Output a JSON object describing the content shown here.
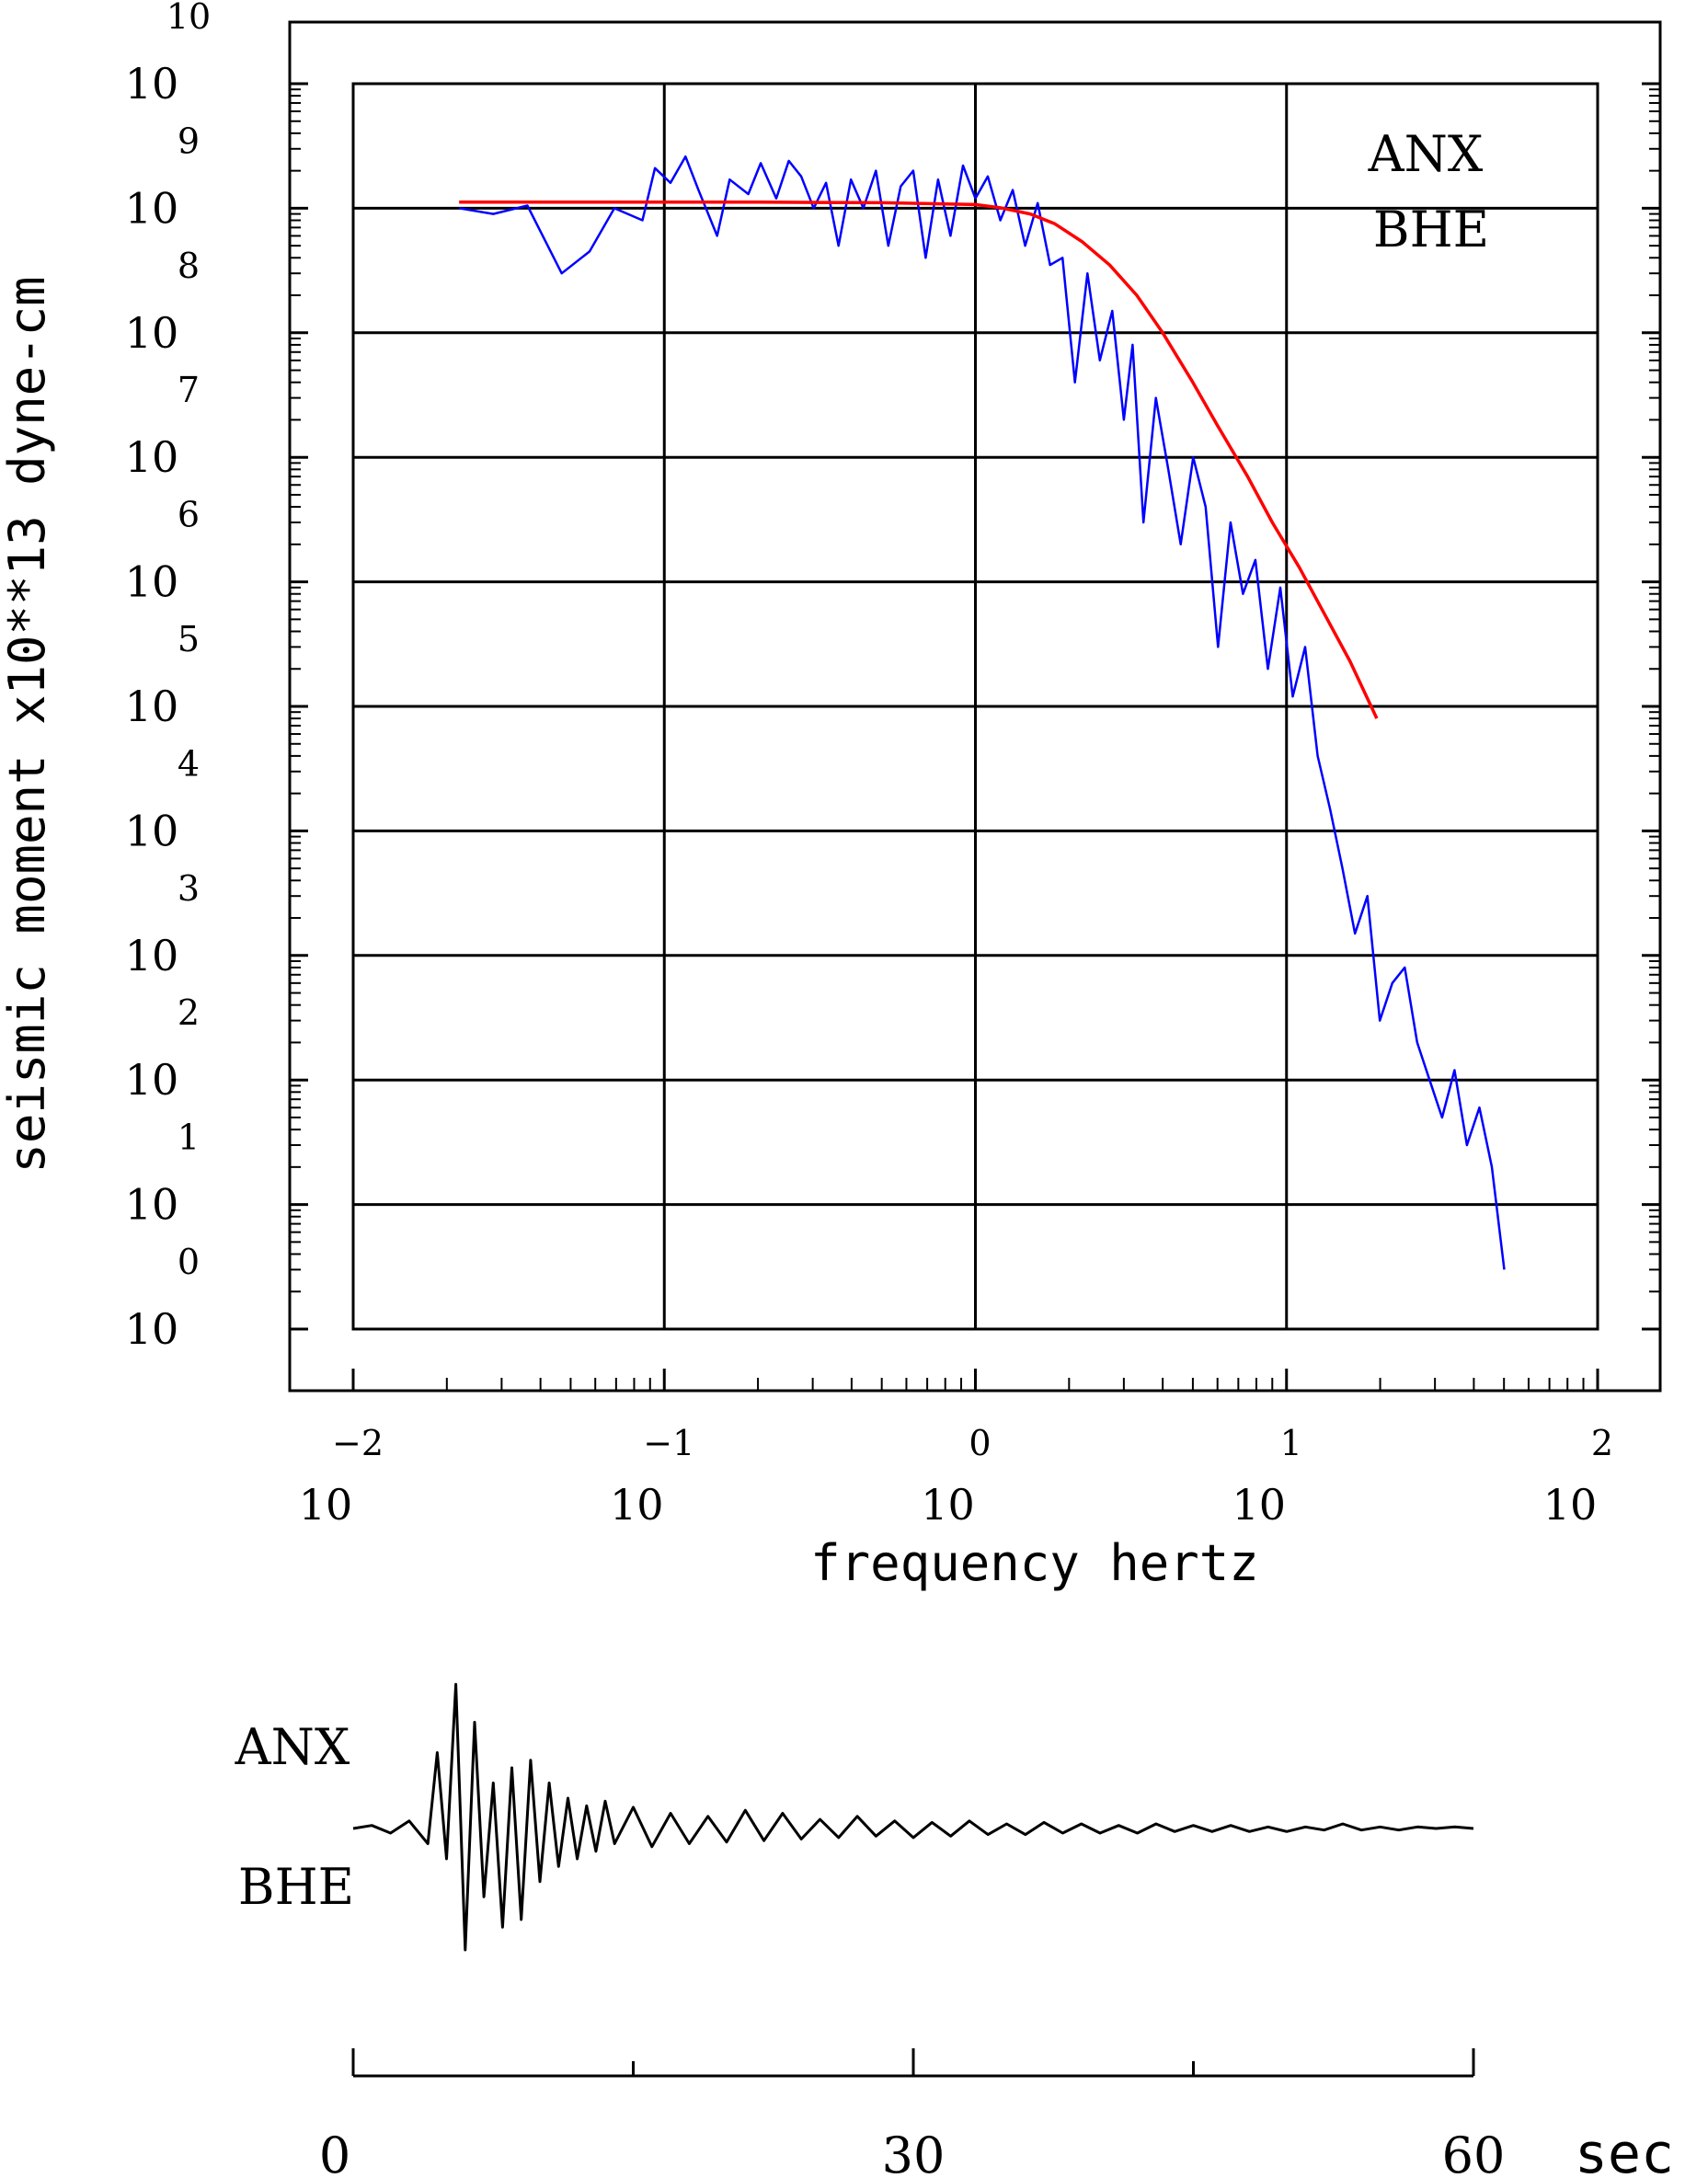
{
  "chart_data": [
    {
      "type": "line",
      "title": "",
      "xlabel": "frequency  hertz",
      "ylabel": "seismic moment x10**13 dyne-cm",
      "x_scale": "log",
      "y_scale": "log",
      "xlim": [
        0.01,
        100
      ],
      "ylim": [
        1,
        10000000000
      ],
      "x_ticks": [
        {
          "value": 0.01,
          "base": "10",
          "exp": "−2"
        },
        {
          "value": 0.1,
          "base": "10",
          "exp": "−1"
        },
        {
          "value": 1,
          "base": "10",
          "exp": "0"
        },
        {
          "value": 10,
          "base": "10",
          "exp": "1"
        },
        {
          "value": 100,
          "base": "10",
          "exp": "2"
        }
      ],
      "y_ticks": [
        {
          "value": 1,
          "base": "10",
          "exp": "0"
        },
        {
          "value": 10,
          "base": "10",
          "exp": "1"
        },
        {
          "value": 100,
          "base": "10",
          "exp": "2"
        },
        {
          "value": 1000,
          "base": "10",
          "exp": "3"
        },
        {
          "value": 10000,
          "base": "10",
          "exp": "4"
        },
        {
          "value": 100000,
          "base": "10",
          "exp": "5"
        },
        {
          "value": 1000000,
          "base": "10",
          "exp": "6"
        },
        {
          "value": 10000000,
          "base": "10",
          "exp": "7"
        },
        {
          "value": 100000000,
          "base": "10",
          "exp": "8"
        },
        {
          "value": 1000000000,
          "base": "10",
          "exp": "9"
        },
        {
          "value": 10000000000,
          "base": "10",
          "exp": "10"
        }
      ],
      "grid": true,
      "annotations": [
        "ANX",
        "BHE"
      ],
      "series": [
        {
          "color": "#0000ff",
          "x": [
            0.0219,
            0.0282,
            0.0363,
            0.0468,
            0.0575,
            0.0691,
            0.0851,
            0.0933,
            0.1047,
            0.117,
            0.1288,
            0.1479,
            0.1622,
            0.1862,
            0.2042,
            0.2291,
            0.2512,
            0.2754,
            0.3021,
            0.3311,
            0.3631,
            0.3981,
            0.4365,
            0.4786,
            0.5248,
            0.5754,
            0.631,
            0.6918,
            0.7586,
            0.8318,
            0.912,
            1.0,
            1.0965,
            1.2023,
            1.3183,
            1.4454,
            1.5849,
            1.7378,
            1.9055,
            2.0893,
            2.2909,
            2.5119,
            2.7542,
            3.0,
            3.2,
            3.4674,
            3.8019,
            4.1687,
            4.5709,
            5.0119,
            5.4954,
            6.0256,
            6.6069,
            7.2444,
            7.9433,
            8.7096,
            9.5499,
            10.4713,
            11.4815,
            12.5893,
            13.8038,
            15.1356,
            16.5959,
            18.197,
            19.9526,
            21.8776,
            23.9883,
            26.3027,
            28.8403,
            31.6228,
            34.6737,
            38.0189,
            41.6869,
            45.7088,
            50.1187
          ],
          "y": [
            1000000000,
            900000000,
            1050000000,
            300000000,
            450000000,
            1000000000,
            800000000,
            2100000000,
            1600000000,
            2600000000,
            1400000000,
            600000000,
            1700000000,
            1300000000,
            2300000000,
            1200000000,
            2400000000,
            1800000000,
            1000000000,
            1600000000,
            500000000,
            1700000000,
            1000000000,
            2000000000,
            500000000,
            1500000000,
            2000000000,
            400000000,
            1700000000,
            600000000,
            2200000000,
            1200000000,
            1800000000,
            800000000,
            1400000000,
            500000000,
            1100000000,
            350000000,
            400000000,
            40000000,
            300000000,
            60000000,
            150000000,
            20000000,
            80000000,
            3000000,
            30000000,
            8000000,
            2000000,
            10000000,
            4000000,
            300000,
            3000000,
            800000,
            1500000,
            200000,
            900000,
            120000,
            300000,
            40000,
            15000,
            5000,
            1500,
            3000,
            300,
            600,
            800,
            200,
            100,
            50,
            120,
            30,
            60,
            20,
            3
          ]
        },
        {
          "color": "#ff0000",
          "x": [
            0.0219,
            0.05,
            0.1,
            0.2,
            0.5,
            1.0,
            1.2,
            1.5,
            1.8,
            2.2,
            2.7,
            3.3,
            4.0,
            5.0,
            6.0,
            7.5,
            9.0,
            11.0,
            13.0,
            16.0,
            19.5
          ],
          "y": [
            1120000000,
            1120000000,
            1120000000,
            1118000000,
            1108000000,
            1070000000,
            1010000000,
            900000000,
            750000000,
            540000000,
            350000000,
            200000000,
            100000000,
            40000000,
            18000000,
            7000000,
            3000000,
            1300000,
            600000,
            230000,
            80000
          ]
        }
      ]
    },
    {
      "type": "line",
      "title": "",
      "xlabel": "sec",
      "ylabel": "",
      "xlim": [
        0,
        60
      ],
      "x_ticks": [
        "0",
        "30",
        "60"
      ],
      "annotations": [
        "ANX",
        "BHE"
      ],
      "series": [
        {
          "color": "#000000",
          "x": [
            0,
            1,
            2,
            3,
            4,
            4.5,
            5,
            5.5,
            6,
            6.5,
            7,
            7.5,
            8,
            8.5,
            9,
            9.5,
            10,
            10.5,
            11,
            11.5,
            12,
            12.5,
            13,
            13.5,
            14,
            15,
            16,
            17,
            18,
            19,
            20,
            21,
            22,
            23,
            24,
            25,
            26,
            27,
            28,
            29,
            30,
            31,
            32,
            33,
            34,
            35,
            36,
            37,
            38,
            39,
            40,
            41,
            42,
            43,
            44,
            45,
            46,
            47,
            48,
            49,
            50,
            51,
            52,
            53,
            54,
            55,
            56,
            57,
            58,
            59,
            60
          ],
          "y": [
            0,
            0.02,
            -0.03,
            0.05,
            -0.1,
            0.5,
            -0.2,
            0.95,
            -0.8,
            0.7,
            -0.45,
            0.3,
            -0.65,
            0.4,
            -0.6,
            0.45,
            -0.35,
            0.3,
            -0.25,
            0.2,
            -0.2,
            0.15,
            -0.15,
            0.18,
            -0.1,
            0.14,
            -0.12,
            0.1,
            -0.1,
            0.08,
            -0.09,
            0.12,
            -0.08,
            0.1,
            -0.07,
            0.06,
            -0.06,
            0.08,
            -0.05,
            0.05,
            -0.06,
            0.04,
            -0.05,
            0.05,
            -0.04,
            0.03,
            -0.04,
            0.04,
            -0.03,
            0.03,
            -0.03,
            0.02,
            -0.03,
            0.03,
            -0.02,
            0.02,
            -0.02,
            0.02,
            -0.02,
            0.01,
            -0.02,
            0.01,
            -0.01,
            0.03,
            -0.01,
            0.01,
            -0.01,
            0.01,
            0,
            0.01,
            0
          ]
        }
      ]
    }
  ]
}
